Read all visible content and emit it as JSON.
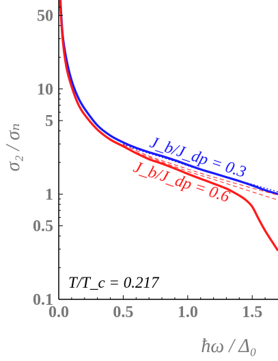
{
  "chart_data": {
    "type": "line",
    "title": "",
    "xlabel": "ħω / Δ₀",
    "ylabel": "σ₂ / σₙ",
    "xlim": [
      0.0,
      1.7
    ],
    "ylim": [
      0.1,
      70
    ],
    "yscale": "log",
    "grid": false,
    "xticks": [
      "0.0",
      "0.5",
      "1.0",
      "1.5"
    ],
    "yticks": [
      {
        "value": 0.1,
        "label": "0.1"
      },
      {
        "value": 0.5,
        "label": "0.5"
      },
      {
        "value": 1,
        "label": "1"
      },
      {
        "value": 5,
        "label": "5"
      },
      {
        "value": 10,
        "label": "10"
      },
      {
        "value": 50,
        "label": "50"
      }
    ],
    "annotations": {
      "temperature": "T/T_c = 0.217",
      "blue_curve": "J_b/J_dp = 0.3",
      "red_curve": "J_b/J_dp = 0.6"
    },
    "series": [
      {
        "name": "J_b/J_dp = 0.3",
        "color": "#1a1aff",
        "style": "solid",
        "x": [
          0.01,
          0.03,
          0.06,
          0.1,
          0.15,
          0.2,
          0.3,
          0.4,
          0.5,
          0.6,
          0.7,
          0.8,
          0.9,
          1.0,
          1.1,
          1.2,
          1.3,
          1.4,
          1.5,
          1.6,
          1.7
        ],
        "y": [
          80,
          33,
          19,
          12,
          8.3,
          6.5,
          4.5,
          3.6,
          3.1,
          2.75,
          2.5,
          2.3,
          2.1,
          1.9,
          1.72,
          1.58,
          1.45,
          1.33,
          1.21,
          1.09,
          1.0
        ]
      },
      {
        "name": "J_b/J_dp = 0.3 (dotted)",
        "color": "#1a1aff",
        "style": "dotted",
        "x": [
          0.5,
          0.6,
          0.7,
          0.8,
          0.9,
          1.0,
          1.1,
          1.2,
          1.3,
          1.4,
          1.5,
          1.6,
          1.7
        ],
        "y": [
          3.0,
          2.68,
          2.44,
          2.24,
          2.05,
          1.86,
          1.7,
          1.57,
          1.45,
          1.34,
          1.24,
          1.14,
          1.05
        ]
      },
      {
        "name": "J_b/J_dp = 0.6",
        "color": "#ff1a1a",
        "style": "solid",
        "x": [
          0.01,
          0.03,
          0.06,
          0.1,
          0.15,
          0.2,
          0.3,
          0.4,
          0.5,
          0.6,
          0.7,
          0.8,
          0.9,
          1.0,
          1.1,
          1.2,
          1.3,
          1.35,
          1.4,
          1.45,
          1.5,
          1.55,
          1.6,
          1.65,
          1.7
        ],
        "y": [
          70,
          30,
          16,
          10.5,
          7.2,
          5.7,
          4.1,
          3.3,
          2.85,
          2.45,
          2.15,
          1.95,
          1.75,
          1.56,
          1.4,
          1.26,
          1.13,
          1.05,
          0.97,
          0.88,
          0.76,
          0.58,
          0.45,
          0.36,
          0.29
        ]
      },
      {
        "name": "J_b/J_dp = 0.6 (dashed 1)",
        "color": "#ff1a1a",
        "style": "dashed",
        "x": [
          0.5,
          0.7,
          0.9,
          1.1,
          1.3,
          1.5,
          1.7
        ],
        "y": [
          2.95,
          2.3,
          1.9,
          1.58,
          1.34,
          1.14,
          0.98
        ]
      },
      {
        "name": "J_b/J_dp = 0.6 (dashed 2)",
        "color": "#ff1a1a",
        "style": "dashed",
        "x": [
          0.6,
          0.8,
          1.0,
          1.2,
          1.4,
          1.6,
          1.7
        ],
        "y": [
          2.5,
          2.02,
          1.65,
          1.38,
          1.15,
          0.96,
          0.88
        ]
      }
    ]
  }
}
